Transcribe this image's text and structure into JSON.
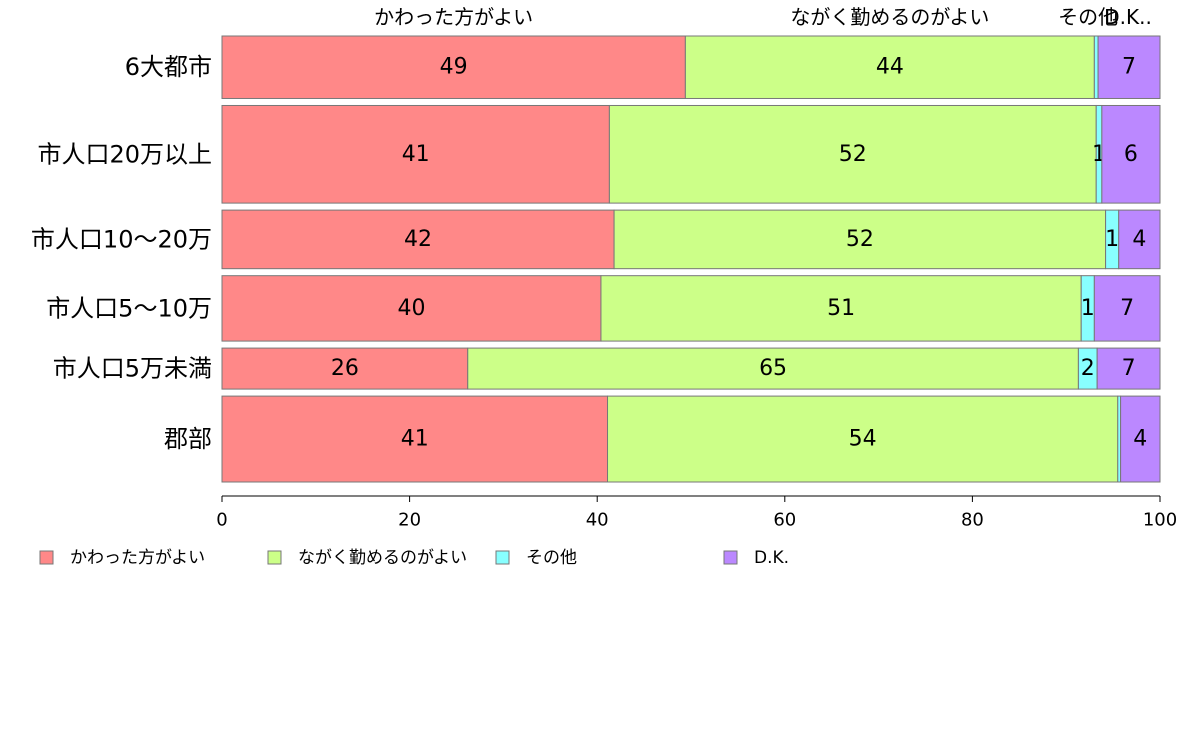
{
  "chart_data": {
    "type": "bar",
    "orientation": "horizontal",
    "stacked": true,
    "categories": [
      "6大都市",
      "市人口20万以上",
      "市人口10〜20万",
      "市人口5〜10万",
      "市人口5万未満",
      "郡部"
    ],
    "row_weights": [
      64,
      100,
      60,
      67,
      42,
      88
    ],
    "series": [
      {
        "name": "かわった方がよい",
        "color": "#ff8888",
        "values": [
          49.4,
          41.3,
          41.8,
          40.4,
          26.2,
          41.1
        ],
        "labels": [
          "49",
          "41",
          "42",
          "40",
          "26",
          "41"
        ]
      },
      {
        "name": "ながく勤めるのがよい",
        "color": "#ccff88",
        "values": [
          43.6,
          51.9,
          52.4,
          51.2,
          65.1,
          54.4
        ],
        "labels": [
          "44",
          "52",
          "52",
          "51",
          "65",
          "54"
        ]
      },
      {
        "name": "その他",
        "color": "#88ffff",
        "values": [
          0.4,
          0.6,
          1.4,
          1.4,
          2.0,
          0.3
        ],
        "labels": [
          "",
          "1",
          "1",
          "1",
          "2",
          ""
        ]
      },
      {
        "name": "D.K.",
        "color": "#bb88ff",
        "values": [
          6.6,
          6.2,
          4.4,
          7.0,
          6.7,
          4.2
        ],
        "labels": [
          "7",
          "6",
          "4",
          "7",
          "7",
          "4"
        ]
      }
    ],
    "top_labels": [
      "かわった方がよい",
      "ながく勤めるのがよい",
      "その他",
      "D.K.."
    ],
    "x_ticks": [
      0,
      20,
      40,
      60,
      80,
      100
    ],
    "xlim": [
      0,
      100
    ],
    "grid": false,
    "legend_position": "bottom-left"
  }
}
